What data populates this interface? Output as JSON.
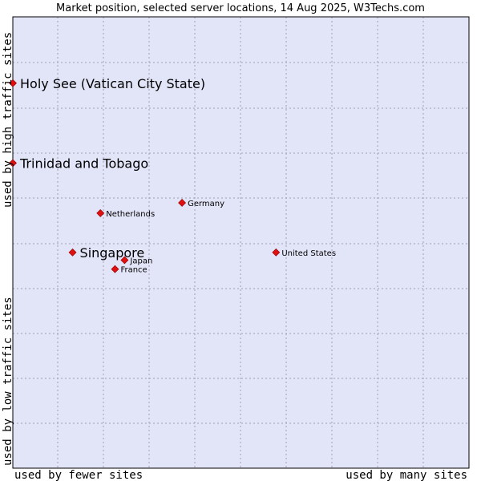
{
  "chart_data": {
    "type": "scatter",
    "title": "Market position, selected server locations, 14 Aug 2025, W3Techs.com",
    "xlabel_left": "used by fewer sites",
    "xlabel_right": "used by many sites",
    "ylabel_top": "used by high traffic sites",
    "ylabel_bottom": "used by low traffic sites",
    "xlim": [
      0,
      1
    ],
    "ylim": [
      0,
      1
    ],
    "grid": true,
    "colors": {
      "plot_bg": "#e2e4f8",
      "grid": "#a0a0b4",
      "point": "#e01010",
      "border": "#000000"
    },
    "points": [
      {
        "name": "Holy See (Vatican City State)",
        "x": 0.0,
        "y": 0.853,
        "emphasis": true
      },
      {
        "name": "Trinidad and Tobago",
        "x": 0.0,
        "y": 0.676,
        "emphasis": true
      },
      {
        "name": "Germany",
        "x": 0.371,
        "y": 0.588,
        "emphasis": false
      },
      {
        "name": "Netherlands",
        "x": 0.192,
        "y": 0.565,
        "emphasis": false
      },
      {
        "name": "Singapore",
        "x": 0.131,
        "y": 0.478,
        "emphasis": true
      },
      {
        "name": "United States",
        "x": 0.577,
        "y": 0.478,
        "emphasis": false
      },
      {
        "name": "Japan",
        "x": 0.245,
        "y": 0.461,
        "emphasis": false
      },
      {
        "name": "France",
        "x": 0.224,
        "y": 0.441,
        "emphasis": false
      }
    ]
  }
}
